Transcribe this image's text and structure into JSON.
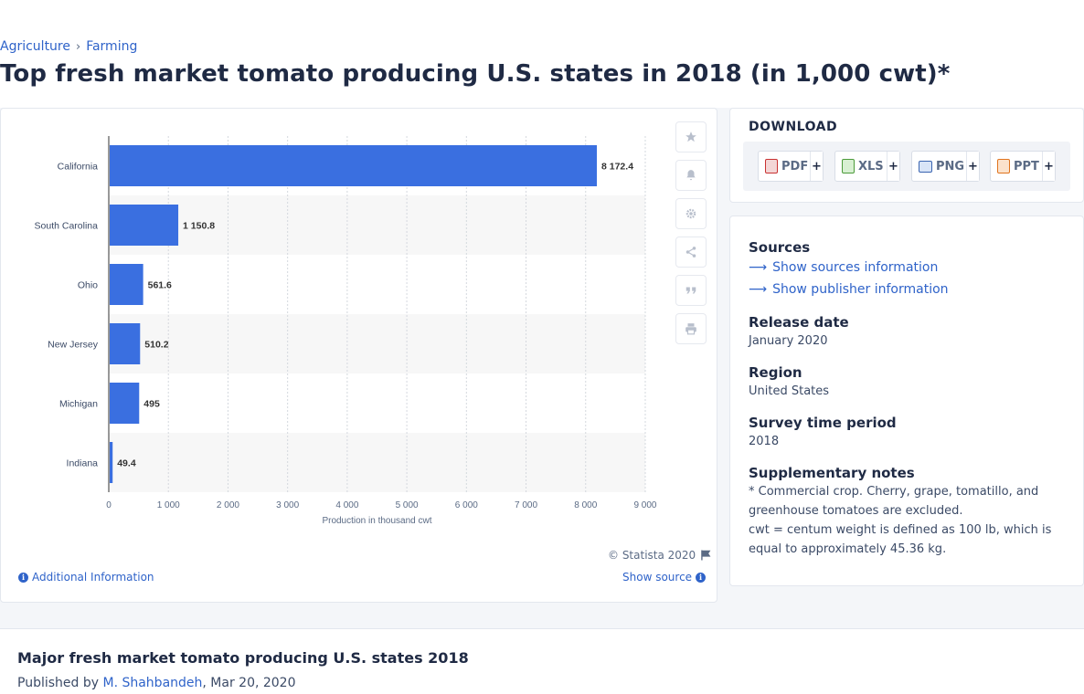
{
  "breadcrumb": {
    "items": [
      "Agriculture",
      "Farming"
    ],
    "separator": "›"
  },
  "page_title": "Top fresh market tomato producing U.S. states in 2018 (in 1,000 cwt)*",
  "toolbar": {
    "icons": [
      "star-icon",
      "bell-icon",
      "gear-icon",
      "share-icon",
      "quote-icon",
      "print-icon"
    ]
  },
  "chart_footer": {
    "copyright": "© Statista 2020",
    "additional_info": "Additional Information",
    "show_source": "Show source"
  },
  "chart_data": {
    "type": "bar",
    "orientation": "horizontal",
    "categories": [
      "California",
      "South Carolina",
      "Ohio",
      "New Jersey",
      "Michigan",
      "Indiana"
    ],
    "values": [
      8172.4,
      1150.8,
      561.6,
      510.2,
      495,
      49.4
    ],
    "value_labels": [
      "8 172.4",
      "1 150.8",
      "561.6",
      "510.2",
      "495",
      "49.4"
    ],
    "x_ticks": [
      "0",
      "1 000",
      "2 000",
      "3 000",
      "4 000",
      "5 000",
      "6 000",
      "7 000",
      "8 000",
      "9 000"
    ],
    "xlabel": "Production in thousand cwt",
    "xlim": [
      0,
      9000
    ],
    "grid": true,
    "bar_color": "#3a6fe0"
  },
  "download": {
    "title": "DOWNLOAD",
    "buttons": [
      {
        "label": "PDF",
        "plus": "+"
      },
      {
        "label": "XLS",
        "plus": "+"
      },
      {
        "label": "PNG",
        "plus": "+"
      },
      {
        "label": "PPT",
        "plus": "+"
      }
    ]
  },
  "meta": {
    "sources_heading": "Sources",
    "show_sources": "Show sources information",
    "show_publisher": "Show publisher information",
    "release_heading": "Release date",
    "release_value": "January 2020",
    "region_heading": "Region",
    "region_value": "United States",
    "survey_heading": "Survey time period",
    "survey_value": "2018",
    "notes_heading": "Supplementary notes",
    "notes_line1": "* Commercial crop. Cherry, grape, tomatillo, and greenhouse tomatoes are excluded.",
    "notes_line2": "cwt = centum weight is defined as 100 lb, which is equal to approximately 45.36 kg."
  },
  "bottom": {
    "title": "Major fresh market tomato producing U.S. states 2018",
    "published_prefix": "Published by",
    "author": "M. Shahbandeh",
    "date_suffix": ", Mar 20, 2020"
  },
  "colors": {
    "accent": "#2f63c9",
    "bar": "#3a6fe0",
    "text": "#1f2a44"
  }
}
